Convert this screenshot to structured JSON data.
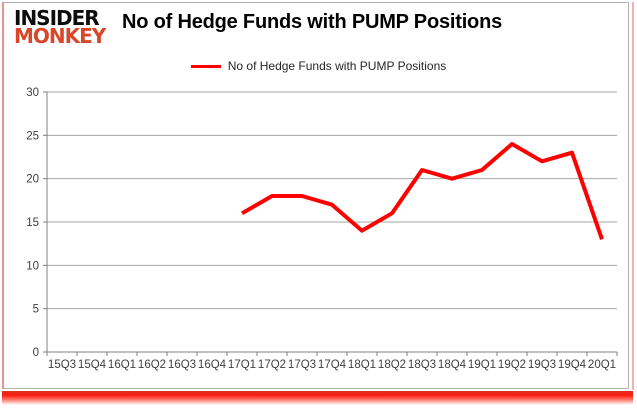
{
  "logo": {
    "line1": "INSIDER",
    "line2": "MONKEY"
  },
  "header": {
    "title": "No of Hedge Funds with PUMP Positions"
  },
  "legend": {
    "label": "No of Hedge Funds with PUMP Positions"
  },
  "colors": {
    "line": "#ff0000",
    "logo_red": "#d9472b",
    "grid": "#a6a6a6",
    "axis": "#808080",
    "tick_label": "#404040",
    "frame_red": "#ff1d10"
  },
  "chart_data": {
    "type": "line",
    "title": "No of Hedge Funds with PUMP Positions",
    "categories": [
      "15Q3",
      "15Q4",
      "16Q1",
      "16Q2",
      "16Q3",
      "16Q4",
      "17Q1",
      "17Q2",
      "17Q3",
      "17Q4",
      "18Q1",
      "18Q2",
      "18Q3",
      "18Q4",
      "19Q1",
      "19Q2",
      "19Q3",
      "19Q4",
      "20Q1"
    ],
    "series": [
      {
        "name": "No of Hedge Funds with PUMP Positions",
        "color": "#ff0000",
        "values": [
          null,
          null,
          null,
          null,
          null,
          null,
          16,
          18,
          18,
          17,
          14,
          16,
          21,
          20,
          21,
          24,
          22,
          23,
          13
        ]
      }
    ],
    "xlabel": "",
    "ylabel": "",
    "ylim": [
      0,
      30
    ],
    "yticks": [
      0,
      5,
      10,
      15,
      20,
      25,
      30
    ],
    "grid": true,
    "legend_position": "top"
  }
}
